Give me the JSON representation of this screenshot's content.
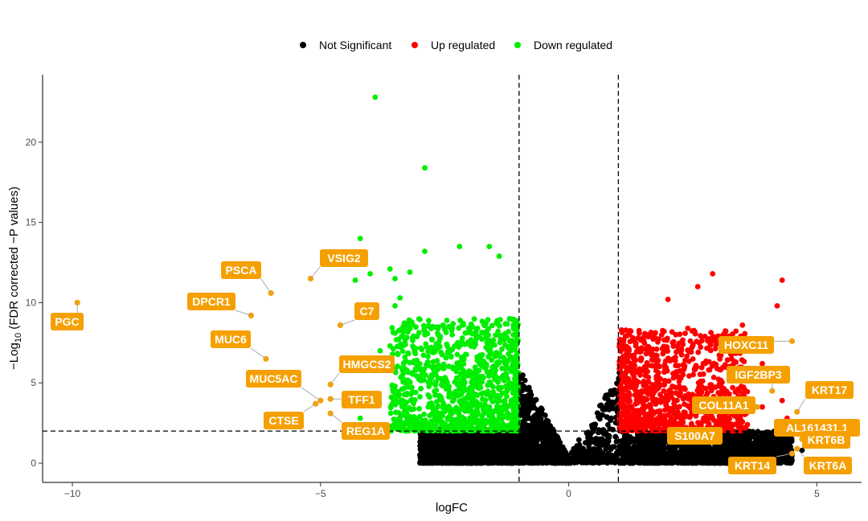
{
  "chart_data": {
    "type": "scatter",
    "title": "",
    "xlabel": "logFC",
    "ylabel_parts": {
      "prefix": "−Log",
      "sub": "10",
      "suffix": " (FDR corrected −P values)"
    },
    "xlim": [
      -10.6,
      5.9
    ],
    "ylim": [
      -1.2,
      24.2
    ],
    "x_ticks": [
      -10,
      -5,
      0,
      5
    ],
    "x_tick_labels": [
      "−10",
      "−5",
      "0",
      "5"
    ],
    "y_ticks": [
      0,
      5,
      10,
      15,
      20
    ],
    "y_tick_labels": [
      "0",
      "5",
      "10",
      "15",
      "20"
    ],
    "thresholds": {
      "logfc": [
        -1,
        1
      ],
      "neg_log10_fdr": 2
    },
    "legend": {
      "placement": "top",
      "entries": [
        {
          "label": "Not Significant",
          "color": "#000000"
        },
        {
          "label": "Up regulated",
          "color": "#ff0000"
        },
        {
          "label": "Down regulated",
          "color": "#00ee00"
        }
      ]
    },
    "colors": {
      "not_significant": "#000000",
      "up": "#ff0000",
      "down": "#00ee00",
      "highlight": "#f5a000"
    },
    "cloud_seed": 12345,
    "series": [
      {
        "name": "Not Significant (left wing)",
        "color": "#000000",
        "n": 2600,
        "x_range": [
          -3.0,
          0
        ],
        "y_range": [
          -0.1,
          8.0
        ],
        "shape": "v-left"
      },
      {
        "name": "Not Significant (right wing)",
        "color": "#000000",
        "n": 2000,
        "x_range": [
          0,
          4.5
        ],
        "y_range": [
          -0.1,
          7.8
        ],
        "shape": "v-right"
      },
      {
        "name": "Down regulated",
        "color": "#00ee00",
        "n": 1100,
        "x_range": [
          -3.6,
          -1.0
        ],
        "y_range": [
          2.0,
          9.0
        ],
        "shape": "band"
      },
      {
        "name": "Up regulated",
        "color": "#ff0000",
        "n": 1000,
        "x_range": [
          1.0,
          3.6
        ],
        "y_range": [
          2.0,
          8.3
        ],
        "shape": "band"
      }
    ],
    "outlier_points": [
      {
        "x": -3.9,
        "y": 22.8,
        "color": "#00ee00"
      },
      {
        "x": -2.9,
        "y": 18.4,
        "color": "#00ee00"
      },
      {
        "x": -4.2,
        "y": 14.0,
        "color": "#00ee00"
      },
      {
        "x": -2.2,
        "y": 13.5,
        "color": "#00ee00"
      },
      {
        "x": -1.6,
        "y": 13.5,
        "color": "#00ee00"
      },
      {
        "x": -2.9,
        "y": 13.2,
        "color": "#00ee00"
      },
      {
        "x": -1.4,
        "y": 12.9,
        "color": "#00ee00"
      },
      {
        "x": -3.6,
        "y": 12.1,
        "color": "#00ee00"
      },
      {
        "x": -3.2,
        "y": 11.9,
        "color": "#00ee00"
      },
      {
        "x": -4.0,
        "y": 11.8,
        "color": "#00ee00"
      },
      {
        "x": -3.5,
        "y": 11.5,
        "color": "#00ee00"
      },
      {
        "x": -4.3,
        "y": 11.4,
        "color": "#00ee00"
      },
      {
        "x": -3.4,
        "y": 10.3,
        "color": "#00ee00"
      },
      {
        "x": -3.5,
        "y": 9.8,
        "color": "#00ee00"
      },
      {
        "x": -3.6,
        "y": 7.3,
        "color": "#00ee00"
      },
      {
        "x": -3.8,
        "y": 7.0,
        "color": "#00ee00"
      },
      {
        "x": -3.5,
        "y": 3.9,
        "color": "#00ee00"
      },
      {
        "x": -4.2,
        "y": 2.8,
        "color": "#00ee00"
      },
      {
        "x": 2.9,
        "y": 11.8,
        "color": "#ff0000"
      },
      {
        "x": 4.3,
        "y": 11.4,
        "color": "#ff0000"
      },
      {
        "x": 2.6,
        "y": 11.0,
        "color": "#ff0000"
      },
      {
        "x": 2.0,
        "y": 10.2,
        "color": "#ff0000"
      },
      {
        "x": 4.2,
        "y": 9.8,
        "color": "#ff0000"
      },
      {
        "x": 3.5,
        "y": 8.6,
        "color": "#ff0000"
      },
      {
        "x": 3.9,
        "y": 6.2,
        "color": "#ff0000"
      },
      {
        "x": 4.1,
        "y": 5.8,
        "color": "#ff0000"
      },
      {
        "x": 3.7,
        "y": 5.3,
        "color": "#ff0000"
      },
      {
        "x": 4.3,
        "y": 3.9,
        "color": "#ff0000"
      },
      {
        "x": 3.9,
        "y": 3.5,
        "color": "#ff0000"
      },
      {
        "x": 4.4,
        "y": 2.8,
        "color": "#ff0000"
      },
      {
        "x": 3.2,
        "y": 2.6,
        "color": "#ff0000"
      },
      {
        "x": 3.6,
        "y": 2.4,
        "color": "#ff0000"
      },
      {
        "x": 2.4,
        "y": 8.4,
        "color": "#ff0000"
      },
      {
        "x": 1.6,
        "y": 8.0,
        "color": "#ff0000"
      },
      {
        "x": 1.7,
        "y": 1.2,
        "color": "#000000"
      },
      {
        "x": 4.9,
        "y": 1.2,
        "color": "#000000"
      },
      {
        "x": 4.7,
        "y": 0.8,
        "color": "#000000"
      }
    ],
    "labeled_points": [
      {
        "gene": "PGC",
        "x": -9.9,
        "y": 10.0,
        "color": "#f5a000"
      },
      {
        "gene": "PSCA",
        "x": -6.0,
        "y": 10.6,
        "color": "#f5a000"
      },
      {
        "gene": "DPCR1",
        "x": -6.4,
        "y": 9.2,
        "color": "#f5a000"
      },
      {
        "gene": "MUC6",
        "x": -6.1,
        "y": 6.5,
        "color": "#f5a000"
      },
      {
        "gene": "VSIG2",
        "x": -5.2,
        "y": 11.5,
        "color": "#f5a000"
      },
      {
        "gene": "C7",
        "x": -4.6,
        "y": 8.6,
        "color": "#f5a000"
      },
      {
        "gene": "HMGCS2",
        "x": -4.8,
        "y": 4.9,
        "color": "#f5a000"
      },
      {
        "gene": "MUC5AC",
        "x": -5.0,
        "y": 3.9,
        "color": "#f5a000"
      },
      {
        "gene": "TFF1",
        "x": -4.8,
        "y": 4.0,
        "color": "#f5a000"
      },
      {
        "gene": "CTSE",
        "x": -5.1,
        "y": 3.7,
        "color": "#f5a000"
      },
      {
        "gene": "REG1A",
        "x": -4.8,
        "y": 3.1,
        "color": "#f5a000"
      },
      {
        "gene": "HOXC11",
        "x": 4.5,
        "y": 7.6,
        "color": "#f5a000"
      },
      {
        "gene": "IGF2BP3",
        "x": 4.1,
        "y": 4.5,
        "color": "#f5a000"
      },
      {
        "gene": "KRT17",
        "x": 4.6,
        "y": 3.2,
        "color": "#f5a000"
      },
      {
        "gene": "COL11A1",
        "x": 3.8,
        "y": 3.5,
        "color": "#f5a000"
      },
      {
        "gene": "AL161431.1",
        "x": 4.5,
        "y": 2.0,
        "color": "#f5a000"
      },
      {
        "gene": "S100A7",
        "x": 3.0,
        "y": 1.6,
        "color": "#f5a000"
      },
      {
        "gene": "KRT6B",
        "x": 4.7,
        "y": 1.5,
        "color": "#f5a000"
      },
      {
        "gene": "KRT14",
        "x": 4.5,
        "y": 0.6,
        "color": "#f5a000"
      },
      {
        "gene": "KRT6A",
        "x": 4.6,
        "y": 0.9,
        "color": "#f5a000"
      }
    ]
  }
}
